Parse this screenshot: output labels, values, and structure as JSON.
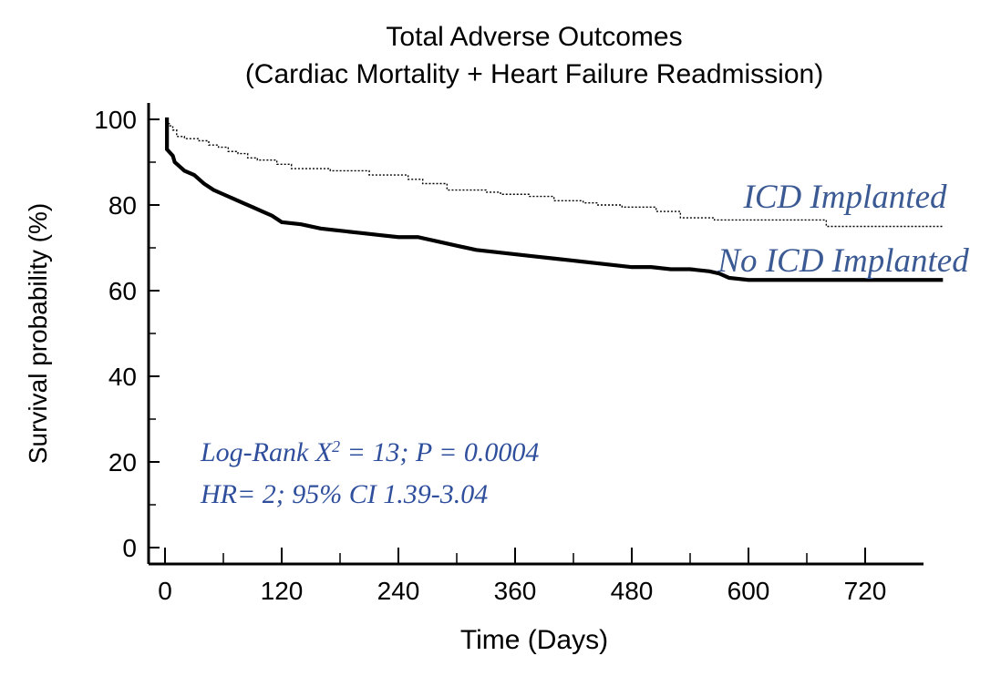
{
  "chart_data": {
    "type": "line",
    "title": "Total Adverse Outcomes",
    "subtitle": "(Cardiac Mortality + Heart Failure Readmission)",
    "xlabel": "Time (Days)",
    "ylabel": "Survival probability (%)",
    "xlim": [
      0,
      780
    ],
    "ylim": [
      0,
      100
    ],
    "xticks": [
      "0",
      "120",
      "240",
      "360",
      "480",
      "600",
      "720"
    ],
    "yticks": [
      "0",
      "20",
      "40",
      "60",
      "80",
      "100"
    ],
    "series": [
      {
        "name": "ICD Implanted",
        "style": "dotted",
        "color": "#000000",
        "label_color": "#3b5a94",
        "x": [
          0,
          2,
          2,
          5,
          5,
          8,
          8,
          12,
          12,
          20,
          20,
          35,
          35,
          45,
          45,
          55,
          55,
          65,
          65,
          75,
          75,
          85,
          85,
          95,
          95,
          115,
          115,
          130,
          130,
          170,
          170,
          210,
          210,
          250,
          250,
          265,
          265,
          290,
          290,
          330,
          330,
          345,
          345,
          375,
          375,
          400,
          400,
          430,
          430,
          445,
          445,
          470,
          470,
          505,
          505,
          530,
          530,
          565,
          565,
          680,
          680,
          800
        ],
        "y": [
          100,
          100,
          99,
          99,
          98.5,
          98.5,
          97.5,
          97.5,
          96,
          96,
          95.5,
          95.5,
          95,
          95,
          94,
          94,
          93.5,
          93.5,
          92.5,
          92.5,
          92,
          92,
          91,
          91,
          90.5,
          90.5,
          89.5,
          89.5,
          88.5,
          88.5,
          88,
          88,
          87,
          87,
          86,
          86,
          85,
          85,
          83.5,
          83.5,
          83,
          83,
          82.5,
          82.5,
          82,
          82,
          81,
          81,
          80.5,
          80.5,
          80,
          80,
          79.5,
          79.5,
          78.5,
          78.5,
          77,
          77,
          76.5,
          76.5,
          75,
          75
        ]
      },
      {
        "name": "No ICD Implanted",
        "style": "solid",
        "color": "#000000",
        "label_color": "#3b5a94",
        "x": [
          0,
          2,
          2,
          8,
          10,
          15,
          20,
          30,
          40,
          50,
          60,
          70,
          80,
          90,
          100,
          110,
          120,
          140,
          160,
          180,
          200,
          220,
          240,
          260,
          280,
          300,
          320,
          340,
          360,
          380,
          400,
          420,
          440,
          460,
          480,
          500,
          520,
          540,
          560,
          570,
          580,
          600,
          800
        ],
        "y": [
          100,
          100,
          93,
          91.5,
          90,
          89,
          88,
          87,
          85,
          83.5,
          82.5,
          81.5,
          80.5,
          79.5,
          78.5,
          77.5,
          76,
          75.5,
          74.5,
          74,
          73.5,
          73,
          72.5,
          72.5,
          71.5,
          70.5,
          69.5,
          69,
          68.5,
          68,
          67.5,
          67,
          66.5,
          66,
          65.5,
          65.5,
          65,
          65,
          64.5,
          64,
          63,
          62.5,
          62.5
        ]
      }
    ],
    "annotations": [
      "Log-Rank X² = 13; P = 0.0004",
      "HR= 2; 95% CI 1.39-3.04"
    ],
    "grid": false,
    "legend": "inline labels at right"
  }
}
